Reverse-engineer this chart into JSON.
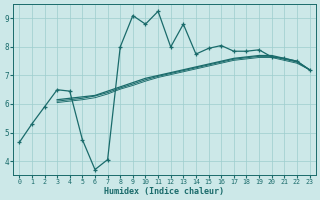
{
  "xlabel": "Humidex (Indice chaleur)",
  "bg_color": "#cce8e8",
  "line_color": "#1a6b6b",
  "xlim": [
    -0.5,
    23.5
  ],
  "ylim": [
    3.5,
    9.5
  ],
  "xticks": [
    0,
    1,
    2,
    3,
    4,
    5,
    6,
    7,
    8,
    9,
    10,
    11,
    12,
    13,
    14,
    15,
    16,
    17,
    18,
    19,
    20,
    21,
    22,
    23
  ],
  "yticks": [
    4,
    5,
    6,
    7,
    8,
    9
  ],
  "grid_color": "#9ecece",
  "line1_x": [
    0,
    1,
    2,
    3,
    4,
    5,
    6,
    7,
    8,
    9,
    10,
    11,
    12,
    13,
    14,
    15,
    16,
    17,
    18,
    19,
    20,
    21,
    22,
    23
  ],
  "line1_y": [
    4.65,
    5.3,
    5.9,
    6.5,
    6.45,
    4.75,
    3.7,
    4.05,
    8.0,
    9.1,
    8.8,
    9.25,
    8.0,
    8.8,
    7.75,
    7.95,
    8.05,
    7.85,
    7.85,
    7.9,
    7.65,
    7.6,
    7.5,
    7.2
  ],
  "line2_x": [
    3,
    4,
    5,
    6,
    7,
    8,
    9,
    10,
    11,
    12,
    13,
    14,
    15,
    16,
    17,
    18,
    19,
    20,
    21,
    22,
    23
  ],
  "line2_y": [
    6.15,
    6.2,
    6.25,
    6.3,
    6.45,
    6.6,
    6.75,
    6.9,
    7.0,
    7.1,
    7.2,
    7.3,
    7.4,
    7.5,
    7.6,
    7.65,
    7.7,
    7.7,
    7.6,
    7.5,
    7.2
  ],
  "line3_x": [
    3,
    4,
    5,
    6,
    7,
    8,
    9,
    10,
    11,
    12,
    13,
    14,
    15,
    16,
    17,
    18,
    19,
    20,
    21,
    22,
    23
  ],
  "line3_y": [
    6.1,
    6.15,
    6.2,
    6.28,
    6.4,
    6.56,
    6.7,
    6.85,
    6.97,
    7.07,
    7.17,
    7.27,
    7.37,
    7.47,
    7.57,
    7.62,
    7.67,
    7.67,
    7.57,
    7.47,
    7.2
  ],
  "line4_x": [
    3,
    4,
    5,
    6,
    7,
    8,
    9,
    10,
    11,
    12,
    13,
    14,
    15,
    16,
    17,
    18,
    19,
    20,
    21,
    22,
    23
  ],
  "line4_y": [
    6.05,
    6.1,
    6.15,
    6.22,
    6.35,
    6.52,
    6.65,
    6.8,
    6.93,
    7.03,
    7.13,
    7.23,
    7.33,
    7.43,
    7.53,
    7.58,
    7.63,
    7.63,
    7.53,
    7.43,
    7.2
  ]
}
